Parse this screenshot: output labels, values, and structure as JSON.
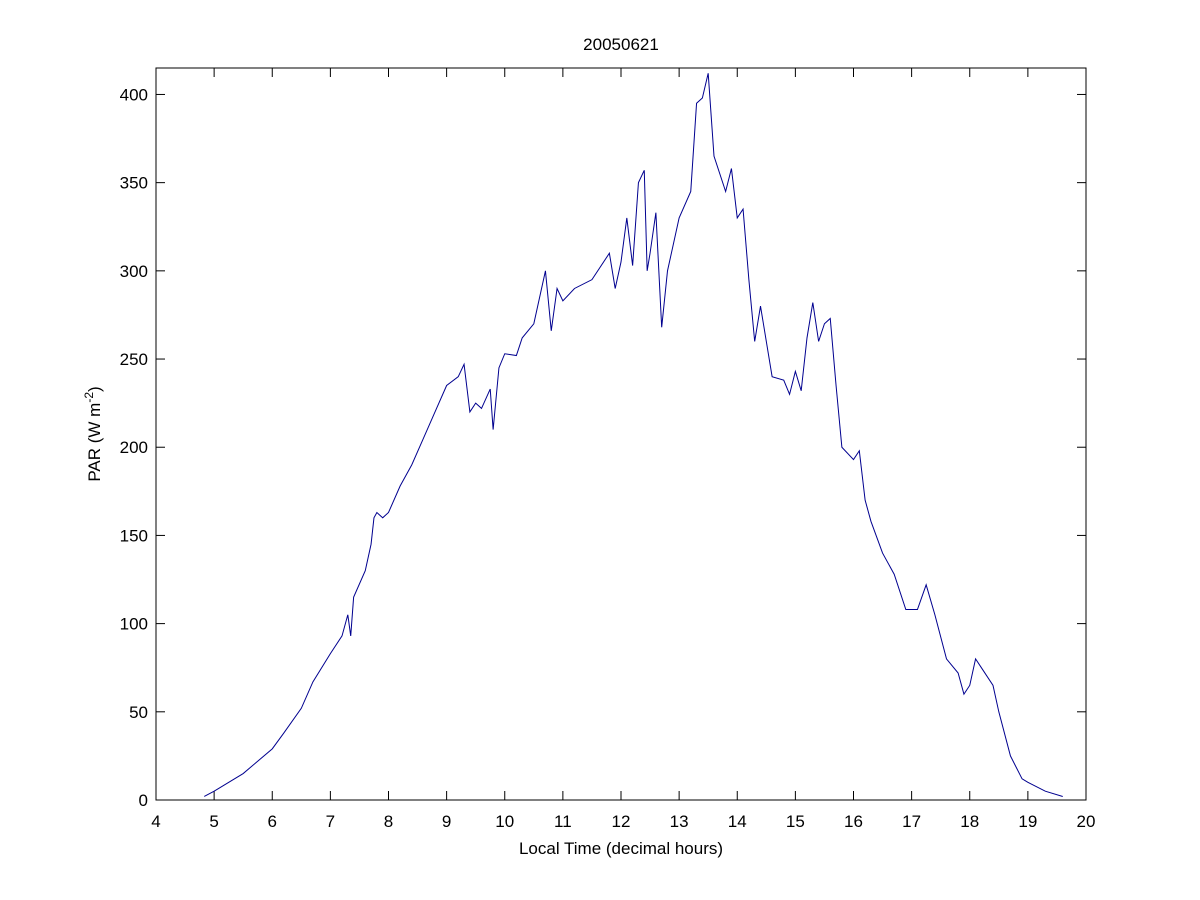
{
  "chart_data": {
    "type": "line",
    "title": "20050621",
    "xlabel": "Local Time (decimal hours)",
    "ylabel": [
      "PAR (W m",
      "-2",
      ")"
    ],
    "x": [
      4.83,
      5.0,
      5.5,
      6.0,
      6.2,
      6.5,
      6.7,
      7.0,
      7.2,
      7.3,
      7.35,
      7.4,
      7.6,
      7.7,
      7.75,
      7.8,
      7.9,
      8.0,
      8.2,
      8.4,
      8.6,
      8.8,
      9.0,
      9.2,
      9.3,
      9.4,
      9.5,
      9.6,
      9.75,
      9.8,
      9.9,
      10.0,
      10.2,
      10.3,
      10.5,
      10.7,
      10.8,
      10.9,
      11.0,
      11.2,
      11.5,
      11.8,
      11.9,
      12.0,
      12.1,
      12.2,
      12.3,
      12.4,
      12.45,
      12.5,
      12.6,
      12.7,
      12.8,
      13.0,
      13.2,
      13.3,
      13.4,
      13.5,
      13.6,
      13.8,
      13.9,
      14.0,
      14.1,
      14.2,
      14.3,
      14.4,
      14.5,
      14.6,
      14.8,
      14.9,
      15.0,
      15.1,
      15.2,
      15.3,
      15.4,
      15.5,
      15.6,
      15.7,
      15.8,
      16.0,
      16.1,
      16.2,
      16.3,
      16.5,
      16.7,
      16.9,
      17.1,
      17.25,
      17.4,
      17.6,
      17.8,
      17.9,
      18.0,
      18.1,
      18.2,
      18.4,
      18.5,
      18.7,
      18.9,
      19.0,
      19.3,
      19.6
    ],
    "series": [
      {
        "color": "#00008f",
        "values": [
          2,
          5,
          15,
          29,
          38,
          52,
          67,
          83,
          93,
          105,
          93,
          115,
          130,
          145,
          160,
          163,
          160,
          163,
          178,
          190,
          205,
          220,
          235,
          240,
          247,
          220,
          225,
          222,
          233,
          210,
          245,
          253,
          252,
          262,
          270,
          300,
          266,
          290,
          283,
          290,
          295,
          310,
          290,
          305,
          330,
          303,
          350,
          357,
          300,
          310,
          333,
          268,
          300,
          330,
          345,
          395,
          398,
          412,
          365,
          345,
          358,
          330,
          335,
          295,
          260,
          280,
          260,
          240,
          238,
          230,
          243,
          232,
          262,
          282,
          260,
          270,
          273,
          235,
          200,
          193,
          198,
          170,
          158,
          140,
          128,
          108,
          108,
          122,
          105,
          80,
          72,
          60,
          65,
          80,
          75,
          65,
          50,
          25,
          12,
          10,
          5,
          2
        ]
      }
    ],
    "xlim": [
      4,
      20
    ],
    "xticks": [
      4,
      5,
      6,
      7,
      8,
      9,
      10,
      11,
      12,
      13,
      14,
      15,
      16,
      17,
      18,
      19,
      20
    ],
    "ylim": [
      0,
      415
    ],
    "yticks": [
      0,
      50,
      100,
      150,
      200,
      250,
      300,
      350,
      400
    ]
  }
}
